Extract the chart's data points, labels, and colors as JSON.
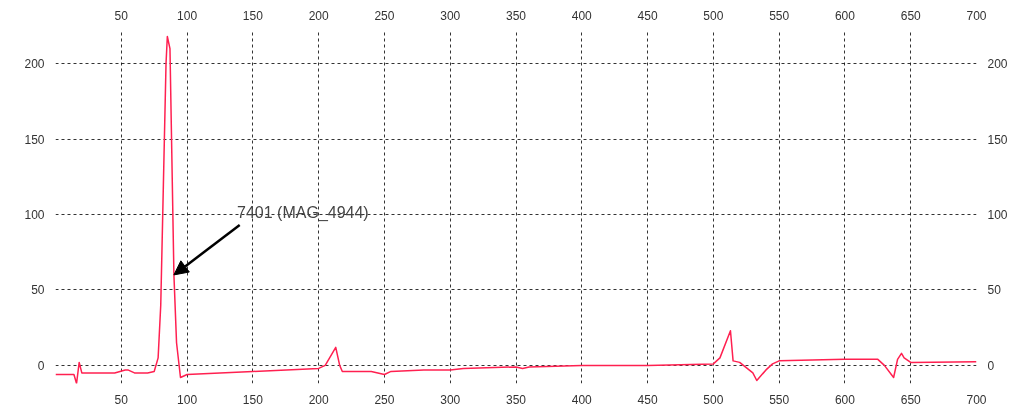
{
  "chart_data": {
    "type": "line",
    "x": [
      0,
      10,
      14,
      16,
      18,
      20,
      30,
      45,
      53,
      55,
      60,
      70,
      75,
      78,
      80,
      82,
      84,
      85,
      87,
      88,
      90,
      92,
      95,
      100,
      150,
      200,
      205,
      209,
      213,
      216,
      218,
      240,
      250,
      255,
      280,
      300,
      310,
      350,
      355,
      360,
      400,
      450,
      500,
      505,
      513,
      515,
      520,
      530,
      533,
      540,
      545,
      550,
      600,
      625,
      630,
      637,
      640,
      643,
      645,
      650,
      700
    ],
    "series": [
      {
        "color": "#ff2050",
        "values": [
          -6,
          -6,
          -6,
          -12,
          2,
          -5,
          -5,
          -5,
          -3,
          -3,
          -5,
          -5,
          -4,
          5,
          40,
          120,
          200,
          218,
          210,
          160,
          60,
          15,
          -8,
          -6,
          -4,
          -2,
          0,
          6,
          12,
          0,
          -4,
          -4,
          -6,
          -4,
          -3,
          -3,
          -2,
          -1,
          -2,
          -1,
          0,
          0,
          1,
          5,
          23,
          3,
          2,
          -5,
          -10,
          -3,
          1,
          3,
          4,
          4,
          0,
          -8,
          4,
          8,
          5,
          2,
          2.5
        ]
      }
    ],
    "xlim": [
      0,
      700
    ],
    "ylim": [
      -12,
      222
    ],
    "xticks": [
      50,
      100,
      150,
      200,
      250,
      300,
      350,
      400,
      450,
      500,
      550,
      600,
      650,
      700
    ],
    "x2lim": [
      0,
      700
    ],
    "x2ticks": [
      50,
      100,
      150,
      200,
      250,
      300,
      350,
      400,
      450,
      500,
      550,
      600,
      650,
      700
    ],
    "yticks": [
      0,
      50,
      100,
      150,
      200
    ],
    "y2lim": [
      -12,
      222
    ],
    "y2ticks": [
      0,
      50,
      100,
      150,
      200
    ],
    "grid": true,
    "line_style": "solid",
    "annotations": [
      {
        "text": "7401 (MAG_4944)",
        "x": 90,
        "y": 60
      }
    ]
  }
}
